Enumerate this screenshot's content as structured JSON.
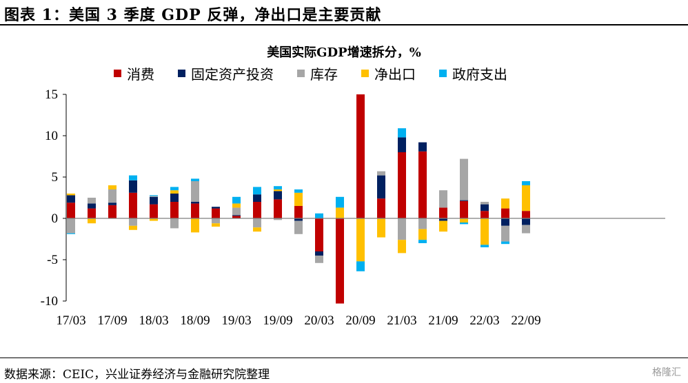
{
  "figure_title": "图表 1：美国 3 季度 GDP 反弹，净出口是主要贡献",
  "source": "数据来源：CEIC，兴业证券经济与金融研究院整理",
  "watermark": "格隆汇",
  "chart_data": {
    "type": "bar",
    "stacked": true,
    "title": "美国实际GDP增速拆分，%",
    "ylim": [
      -10,
      15
    ],
    "yticks": [
      15,
      10,
      5,
      0,
      -5,
      -10
    ],
    "categories": [
      "17Q1",
      "17Q2",
      "17Q3",
      "17Q4",
      "18Q1",
      "18Q2",
      "18Q3",
      "18Q4",
      "19Q1",
      "19Q2",
      "19Q3",
      "19Q4",
      "20Q1",
      "20Q2",
      "20Q3",
      "20Q4",
      "21Q1",
      "21Q2",
      "21Q3",
      "21Q4",
      "22Q1",
      "22Q2",
      "22Q3"
    ],
    "xtick_labels": [
      "17/03",
      "17/09",
      "18/03",
      "18/09",
      "19/03",
      "19/09",
      "20/03",
      "20/09",
      "21/03",
      "21/09",
      "22/03",
      "22/09"
    ],
    "colors": {
      "消费": "#c00000",
      "固定资产投资": "#002060",
      "库存": "#a6a6a6",
      "净出口": "#ffc000",
      "政府支出": "#00b0f0"
    },
    "series": [
      {
        "name": "消费",
        "values": [
          1.9,
          1.2,
          1.6,
          3.1,
          1.7,
          2.0,
          1.8,
          1.2,
          0.3,
          2.0,
          2.3,
          1.5,
          -4.0,
          -10.3,
          15.0,
          2.4,
          8.0,
          8.1,
          1.3,
          2.1,
          0.9,
          1.2,
          0.9
        ]
      },
      {
        "name": "固定资产投资",
        "values": [
          0.9,
          0.6,
          0.3,
          1.5,
          0.9,
          1.0,
          0.2,
          0.2,
          0.1,
          0.9,
          1.0,
          -0.3,
          -0.5,
          0.0,
          0.0,
          2.8,
          1.8,
          1.1,
          -0.3,
          0.1,
          0.8,
          -0.9,
          -0.8
        ]
      },
      {
        "name": "库存",
        "values": [
          -1.8,
          0.7,
          1.6,
          -0.9,
          0.1,
          -1.2,
          2.5,
          -0.6,
          0.9,
          -1.1,
          -0.2,
          -1.6,
          -0.9,
          0.0,
          0.0,
          0.5,
          -2.6,
          -1.3,
          2.1,
          5.0,
          0.3,
          -1.9,
          -1.0
        ]
      },
      {
        "name": "净出口",
        "values": [
          0.2,
          -0.6,
          0.5,
          -0.5,
          -0.3,
          0.4,
          -1.7,
          -0.4,
          0.5,
          -0.5,
          0.2,
          1.6,
          0.0,
          1.3,
          -5.2,
          -2.3,
          -1.6,
          -1.3,
          -1.3,
          -0.5,
          -3.2,
          1.2,
          3.1
        ]
      },
      {
        "name": "政府支出",
        "values": [
          -0.1,
          0.0,
          0.0,
          0.6,
          0.1,
          0.4,
          0.3,
          0.0,
          0.8,
          0.9,
          0.4,
          0.4,
          0.6,
          1.3,
          -1.2,
          0.0,
          1.1,
          -0.4,
          0.0,
          -0.2,
          -0.3,
          -0.3,
          0.5
        ]
      }
    ]
  }
}
